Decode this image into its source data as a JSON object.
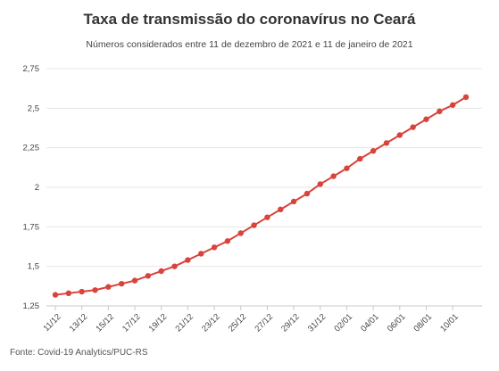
{
  "chart_data": {
    "type": "line",
    "title": "Taxa de transmissão do coronavírus no Ceará",
    "subtitle": "Números considerados entre 11 de dezembro de 2021 e 11 de janeiro de 2021",
    "source": "Fonte: Covid-19 Analytics/PUC-RS",
    "xlabel": "",
    "ylabel": "",
    "ylim": [
      1.25,
      2.75
    ],
    "y_ticks": [
      "1,25",
      "1,5",
      "1,75",
      "2",
      "2,25",
      "2,5",
      "2,75"
    ],
    "y_tick_values": [
      1.25,
      1.5,
      1.75,
      2,
      2.25,
      2.5,
      2.75
    ],
    "x_tick_labels": [
      "11/12",
      "13/12",
      "15/12",
      "17/12",
      "19/12",
      "21/12",
      "23/12",
      "25/12",
      "27/12",
      "29/12",
      "31/12",
      "02/01",
      "04/01",
      "06/01",
      "08/01",
      "10/01"
    ],
    "grid": true,
    "legend": "none",
    "series_color": "#d9433b",
    "categories": [
      "11/12",
      "12/12",
      "13/12",
      "14/12",
      "15/12",
      "16/12",
      "17/12",
      "18/12",
      "19/12",
      "20/12",
      "21/12",
      "22/12",
      "23/12",
      "24/12",
      "25/12",
      "26/12",
      "27/12",
      "28/12",
      "29/12",
      "30/12",
      "31/12",
      "01/01",
      "02/01",
      "03/01",
      "04/01",
      "05/01",
      "06/01",
      "07/01",
      "08/01",
      "09/01",
      "10/01",
      "11/01"
    ],
    "series": [
      {
        "values": [
          1.32,
          1.33,
          1.34,
          1.35,
          1.37,
          1.39,
          1.41,
          1.44,
          1.47,
          1.5,
          1.54,
          1.58,
          1.62,
          1.66,
          1.71,
          1.76,
          1.81,
          1.86,
          1.91,
          1.96,
          2.02,
          2.07,
          2.12,
          2.18,
          2.23,
          2.28,
          2.33,
          2.38,
          2.43,
          2.48,
          2.52,
          2.57
        ]
      }
    ]
  }
}
